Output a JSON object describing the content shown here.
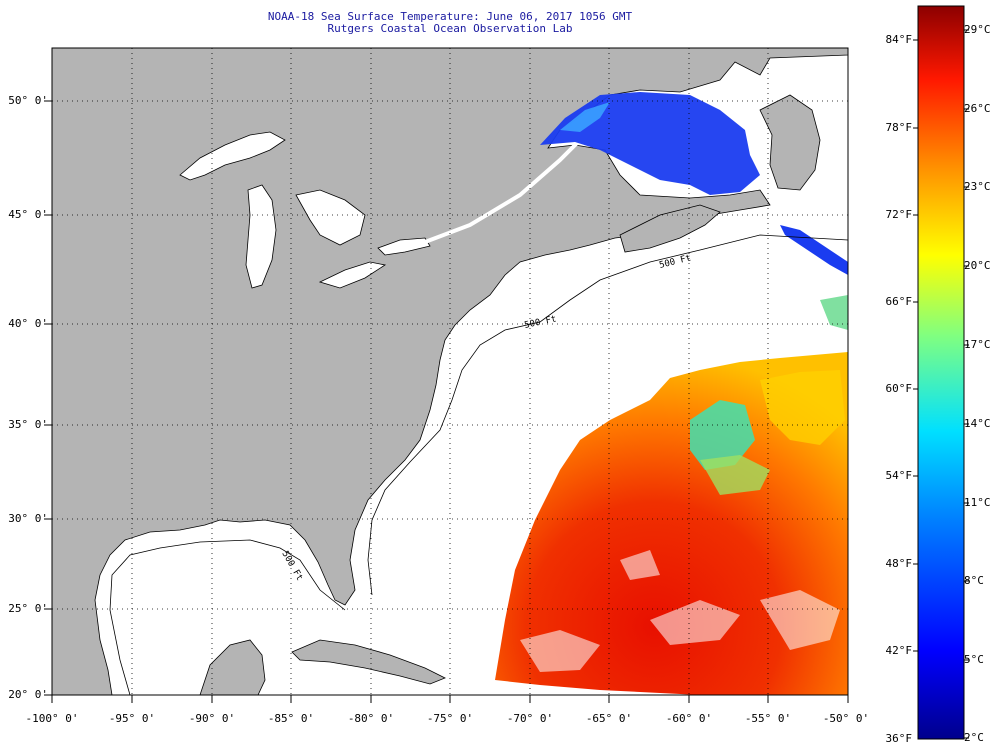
{
  "title": {
    "line1": "NOAA-18 Sea Surface Temperature:  June 06, 2017 1056 GMT",
    "line2": "Rutgers Coastal Ocean Observation Lab"
  },
  "lat_labels": [
    "50° 0'",
    "45° 0'",
    "40° 0'",
    "35° 0'",
    "30° 0'",
    "25° 0'",
    "20° 0'"
  ],
  "lon_labels": [
    "-100° 0'",
    "-95° 0'",
    "-90° 0'",
    "-85° 0'",
    "-80° 0'",
    "-75° 0'",
    "-70° 0'",
    "-65° 0'",
    "-60° 0'",
    "-55° 0'",
    "-50° 0'"
  ],
  "colorbar_f": [
    "84°F",
    "78°F",
    "72°F",
    "66°F",
    "60°F",
    "54°F",
    "48°F",
    "42°F",
    "36°F"
  ],
  "colorbar_c": [
    "29°C",
    "26°C",
    "23°C",
    "20°C",
    "17°C",
    "14°C",
    "11°C",
    "8°C",
    "5°C",
    "2°C"
  ],
  "isobath_labels": [
    "500 Ft",
    "500 Ft",
    "500 Ft"
  ],
  "colors": {
    "land": "#b4b4b4",
    "ocean_nodata": "#ffffff",
    "title": "#1a1aa0",
    "scale_high": "#8c0000",
    "scale_low": "#00008c"
  }
}
